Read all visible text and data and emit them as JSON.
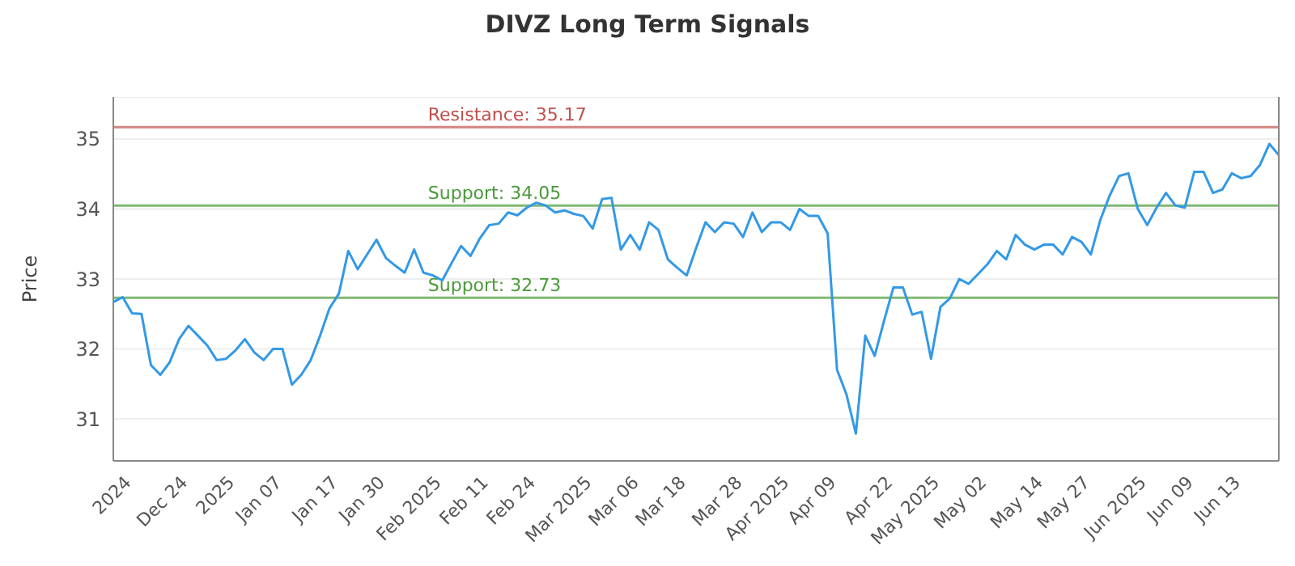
{
  "chart_data": {
    "type": "line",
    "title": "DIVZ Long Term Signals",
    "ylabel": "Price",
    "categories": [
      null,
      null,
      "2024",
      null,
      null,
      null,
      null,
      null,
      "Dec 24",
      null,
      null,
      null,
      null,
      "2025",
      null,
      null,
      null,
      null,
      "Jan 07",
      null,
      null,
      null,
      null,
      null,
      "Jan 17",
      null,
      null,
      null,
      null,
      "Jan 30",
      null,
      null,
      null,
      null,
      null,
      "Feb 2025",
      null,
      null,
      null,
      null,
      "Feb 11",
      null,
      null,
      null,
      null,
      "Feb 24",
      null,
      null,
      null,
      null,
      null,
      "Mar 2025",
      null,
      null,
      null,
      null,
      "Mar 06",
      null,
      null,
      null,
      null,
      "Mar 18",
      null,
      null,
      null,
      null,
      null,
      "Mar 28",
      null,
      null,
      null,
      null,
      "Apr 2025",
      null,
      null,
      null,
      null,
      "Apr 09",
      null,
      null,
      null,
      null,
      null,
      "Apr 22",
      null,
      null,
      null,
      null,
      "May 2025",
      null,
      null,
      null,
      null,
      "May 02",
      null,
      null,
      null,
      null,
      null,
      "May 14",
      null,
      null,
      null,
      null,
      "May 27",
      null,
      null,
      null,
      null,
      null,
      "Jun 2025",
      null,
      null,
      null,
      null,
      "Jun 09",
      null,
      null,
      null,
      null,
      "Jun 13",
      null,
      null,
      null,
      null
    ],
    "series": [
      {
        "color": "#3399e6",
        "values": [
          32.67,
          32.74,
          32.51,
          32.5,
          31.77,
          31.63,
          31.81,
          32.14,
          32.33,
          32.19,
          32.05,
          31.84,
          31.86,
          31.98,
          32.14,
          31.95,
          31.84,
          32.0,
          32.0,
          31.49,
          31.63,
          31.84,
          32.19,
          32.58,
          32.79,
          33.4,
          33.14,
          33.35,
          33.56,
          33.3,
          33.19,
          33.09,
          33.42,
          33.09,
          33.05,
          32.98,
          33.23,
          33.47,
          33.33,
          33.58,
          33.77,
          33.79,
          33.95,
          33.91,
          34.02,
          34.09,
          34.05,
          33.95,
          33.98,
          33.93,
          33.9,
          33.72,
          34.14,
          34.16,
          33.42,
          33.63,
          33.42,
          33.81,
          33.7,
          33.28,
          33.16,
          33.05,
          33.44,
          33.81,
          33.67,
          33.81,
          33.79,
          33.6,
          33.95,
          33.67,
          33.81,
          33.81,
          33.7,
          34.0,
          33.9,
          33.9,
          33.65,
          31.7,
          31.35,
          30.79,
          32.19,
          31.9,
          32.4,
          32.88,
          32.88,
          32.49,
          32.53,
          31.86,
          32.6,
          32.72,
          33.0,
          32.93,
          33.07,
          33.21,
          33.4,
          33.28,
          33.63,
          33.49,
          33.42,
          33.49,
          33.49,
          33.35,
          33.6,
          33.53,
          33.35,
          33.84,
          34.19,
          34.47,
          34.51,
          34.0,
          33.77,
          34.02,
          34.23,
          34.05,
          34.02,
          34.53,
          34.53,
          34.23,
          34.28,
          34.51,
          34.44,
          34.47,
          34.63,
          34.93,
          34.77
        ]
      }
    ],
    "ylim": [
      30.4,
      35.6
    ],
    "yticks": [
      31,
      32,
      33,
      34,
      35
    ],
    "grid": "y",
    "marker": "none",
    "line_style": "solid",
    "legend": false,
    "ref_lines": [
      {
        "axis": "y",
        "value": 35.17,
        "label": "Resistance: 35.17",
        "color": "#c0504d"
      },
      {
        "axis": "y",
        "value": 34.05,
        "label": "Support: 34.05",
        "color": "#4a9a3a"
      },
      {
        "axis": "y",
        "value": 32.73,
        "label": "Support: 32.73",
        "color": "#4a9a3a"
      }
    ]
  }
}
